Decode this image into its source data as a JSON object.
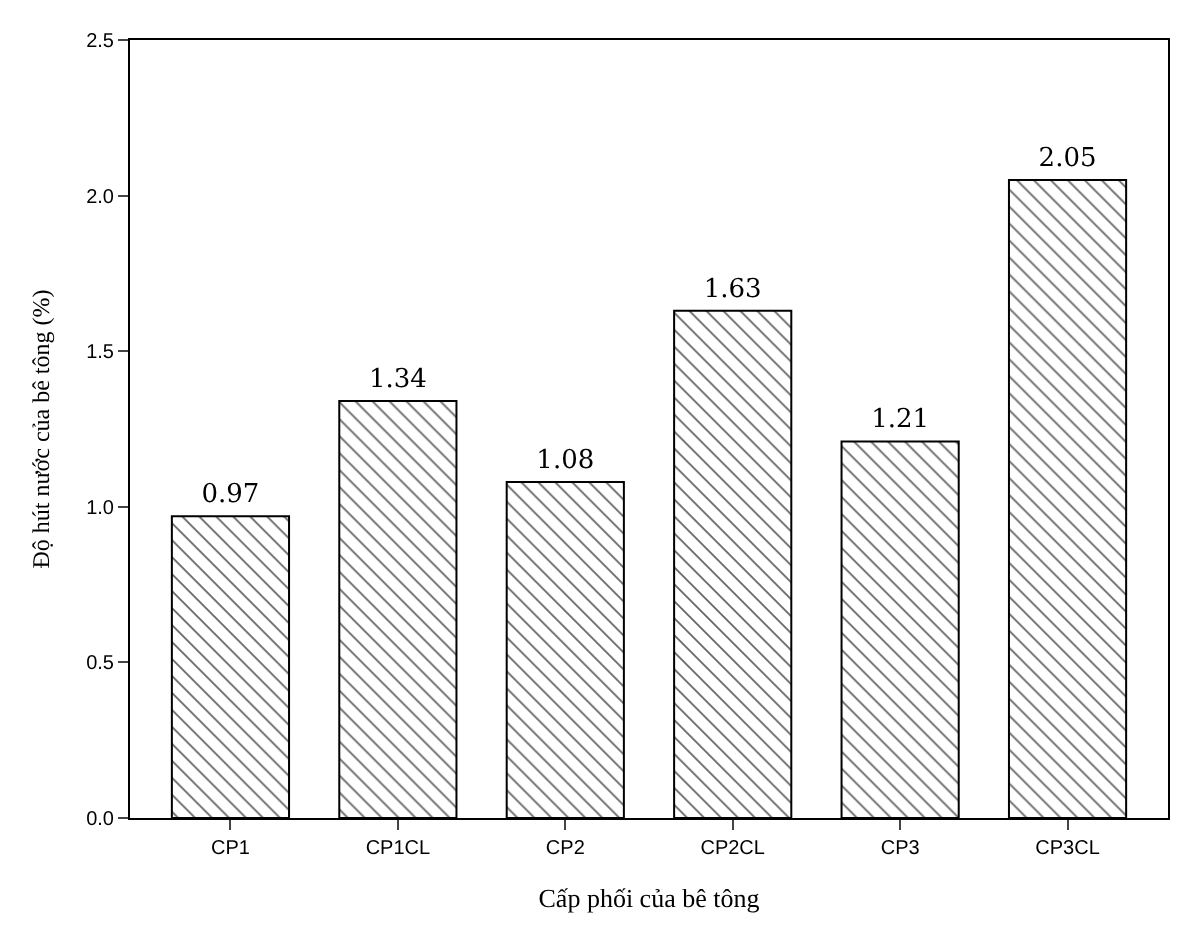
{
  "chart_data": {
    "type": "bar",
    "xlabel": "Cấp phối của bê tông",
    "ylabel": "Độ hút nước của bê tông (%)",
    "categories": [
      "CP1",
      "CP1CL",
      "CP2",
      "CP2CL",
      "CP3",
      "CP3CL"
    ],
    "values": [
      0.97,
      1.34,
      1.08,
      1.63,
      1.21,
      2.05
    ],
    "color": "#000000",
    "ylim": [
      0,
      2.5
    ],
    "yticks": [
      {
        "value": 0,
        "label": "0.0"
      },
      0.5,
      {
        "value": 1,
        "label": "1.0"
      },
      1.5,
      {
        "value": 2,
        "label": "2.0"
      },
      2.5
    ],
    "data_labels": true
  }
}
